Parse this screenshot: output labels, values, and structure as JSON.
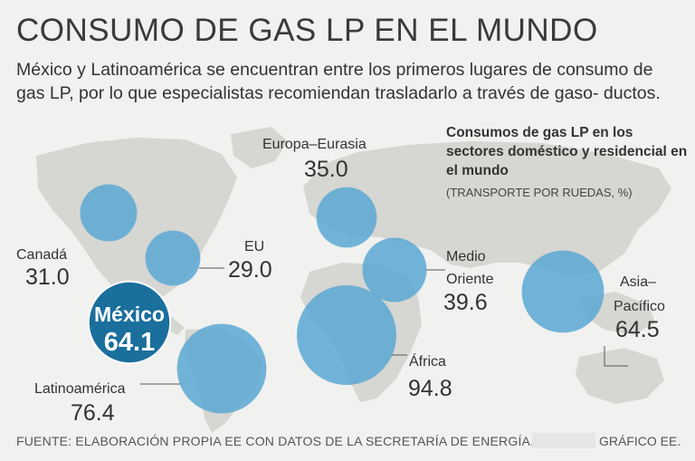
{
  "title": "CONSUMO DE GAS LP EN EL MUNDO",
  "subtitle": "México y Latinoamérica se encuentran entre los primeros lugares de consumo de gas LP, por lo que especialistas recomiendan trasladarlo a través de gaso- ductos.",
  "note": "Consumos de gas LP en los sectores doméstico y residencial en el mundo",
  "unit": "(TRANSPORTE POR RUEDAS, %)",
  "footer": "FUENTE: ELABORACIÓN PROPIA EE CON DATOS DE LA SECRETARÍA DE ENERGÍA.",
  "credit": "GRÁFICO EE.",
  "colors": {
    "bubble": "#5aa8d3",
    "highlight": "#1a6f9c",
    "land": "#d6d6d2",
    "text": "#333333"
  },
  "chart_data": {
    "type": "bubble-map",
    "title": "Consumos de gas LP en los sectores doméstico y residencial en el mundo",
    "unit": "%",
    "series": [
      {
        "name": "Canadá",
        "value": 31.0,
        "label": "31.0"
      },
      {
        "name": "EU",
        "value": 29.0,
        "label": "29.0"
      },
      {
        "name": "México",
        "value": 64.1,
        "label": "64.1",
        "highlight": true
      },
      {
        "name": "Latinoamérica",
        "value": 76.4,
        "label": "76.4"
      },
      {
        "name": "Europa–Eurasia",
        "value": 35.0,
        "label": "35.0"
      },
      {
        "name": "Medio Oriente",
        "value": 39.6,
        "label": "39.6"
      },
      {
        "name": "África",
        "value": 94.8,
        "label": "94.8"
      },
      {
        "name": "Asia–Pacífico",
        "value": 64.5,
        "label": "64.5"
      }
    ]
  }
}
